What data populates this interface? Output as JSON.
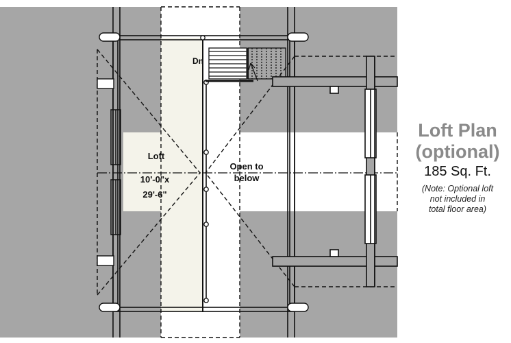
{
  "plan": {
    "room_label": "Loft",
    "room_width": "10'-0\"x",
    "room_length": "29'-6\"",
    "open_label_line1": "Open to",
    "open_label_line2": "below",
    "fixture_label": "Dn"
  },
  "legend": {
    "title_line1": "Loft Plan",
    "title_line2": "(optional)",
    "area": "185 Sq. Ft.",
    "note_line1": "(Note: Optional loft",
    "note_line2": "not included in",
    "note_line3": "total floor area)"
  },
  "colors": {
    "gray_zone": "#a6a6a6",
    "loft_floor": "#f4f3ea",
    "lines": "#111111"
  }
}
